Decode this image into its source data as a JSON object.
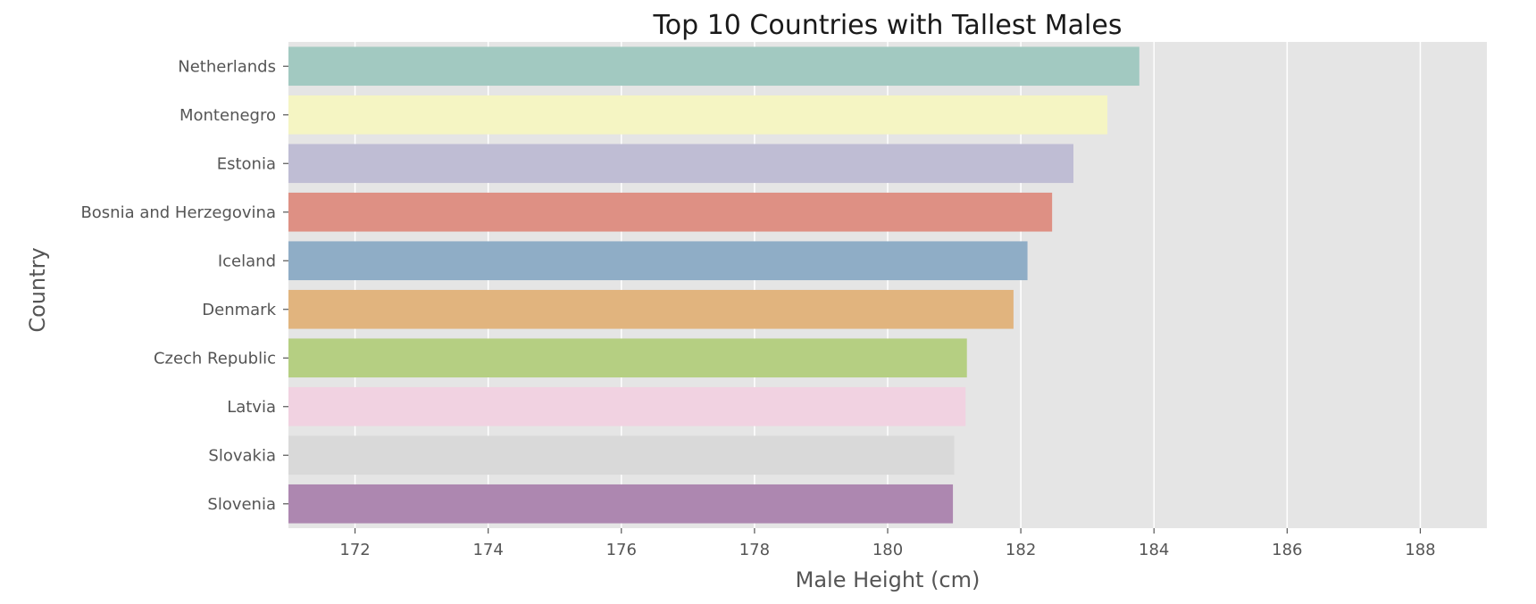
{
  "chart_data": {
    "type": "bar",
    "orientation": "horizontal",
    "title": "Top 10 Countries with Tallest Males",
    "xlabel": "Male Height (cm)",
    "ylabel": "Country",
    "categories": [
      "Netherlands",
      "Montenegro",
      "Estonia",
      "Bosnia and Herzegovina",
      "Iceland",
      "Denmark",
      "Czech Republic",
      "Latvia",
      "Slovakia",
      "Slovenia"
    ],
    "values": [
      183.78,
      183.3,
      182.79,
      182.47,
      182.1,
      181.89,
      181.19,
      181.17,
      181.0,
      180.98
    ],
    "colors": [
      "#a2c9c1",
      "#f5f5c3",
      "#bfbdd4",
      "#de9084",
      "#8fadc6",
      "#e1b47e",
      "#b5cf82",
      "#f1d2e1",
      "#d9d9d9",
      "#ad87b0"
    ],
    "xlim": [
      171,
      189
    ],
    "xticks": [
      172,
      174,
      176,
      178,
      180,
      182,
      184,
      186,
      188
    ],
    "grid": true,
    "style": "ggplot",
    "background_color": "#e5e5e5"
  }
}
